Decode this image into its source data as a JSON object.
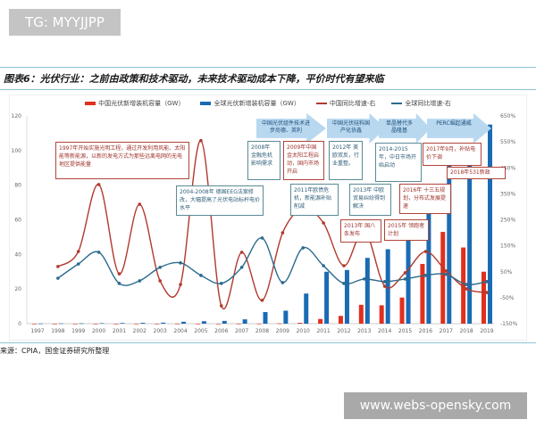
{
  "watermark_top": "TG: MYYJJPP",
  "watermark_bottom": "www.webs-opensky.com",
  "title": "图表6：光伏行业：之前由政策和技术驱动，未来技术驱动成本下降，平价时代有望来临",
  "source": "来源：CPIA，国金证券研究所整理",
  "colors": {
    "china": "#e0301e",
    "global": "#1a6bb3",
    "china_line": "#b03a2e",
    "global_line": "#2a6a8e"
  },
  "arrows": [
    "中国光伏组件技术进步尚德、英利",
    "中国光伏硅料国产化协鑫",
    "单晶替代多晶隆基",
    "PERC崛起通威"
  ],
  "annotations": [
    "1997年开始实施光明工程，通过开发利用风能、太阳能等新能源，以新的发电方式为那些远离电网的无电地区提供能量",
    "2004-2008年 德国EEG法案修改，大幅提高了光伏电站标杆电价水平",
    "2008年 金融危机影响需求",
    "2009年中国金太阳工程启动，国内市场开启",
    "2012年 美欧双反，行业重整。",
    "2011年欧债危机，新能源补贴削减",
    "2013年 中欧贸易纠纷得到解决",
    "2013年 国八条发布",
    "2014-2015年，中日市场开始启动",
    "2015年 领跑者计划",
    "2016年 十三五规划，分布式发展提速",
    "2017年9月，补贴电价下调",
    "2018年531新政"
  ],
  "chart_data": {
    "type": "bar+line",
    "categories": [
      "1997",
      "1998",
      "1999",
      "2000",
      "2001",
      "2002",
      "2003",
      "2004",
      "2005",
      "2006",
      "2007",
      "2008",
      "2009",
      "2010",
      "2011",
      "2012",
      "2013",
      "2014",
      "2015",
      "2016",
      "2017",
      "2018",
      "2019"
    ],
    "series": [
      {
        "name": "中国光伏新增装机容量（GW）",
        "type": "bar",
        "axis": "left",
        "values": [
          0,
          0,
          0,
          0,
          0,
          0,
          0,
          0,
          0,
          0,
          0.02,
          0.04,
          0.16,
          0.5,
          2.7,
          4.5,
          10.9,
          10.6,
          15.1,
          34.5,
          53,
          44,
          30
        ]
      },
      {
        "name": "全球光伏新增装机容量（GW）",
        "type": "bar",
        "axis": "left",
        "values": [
          0.1,
          0.15,
          0.2,
          0.3,
          0.4,
          0.5,
          0.6,
          1.1,
          1.4,
          1.6,
          2.5,
          6.7,
          7.5,
          17.4,
          30,
          31,
          38,
          43,
          52,
          75,
          100,
          103,
          115
        ]
      },
      {
        "name": "中国同比增速-右",
        "type": "line",
        "axis": "right",
        "values": [
          null,
          70,
          128,
          386,
          42,
          310,
          15,
          1,
          555,
          -81,
          125,
          -60,
          200,
          293,
          238,
          73,
          210,
          -6,
          46,
          128,
          53,
          -16,
          -30
        ]
      },
      {
        "name": "全球同比增速-右",
        "type": "line",
        "axis": "right",
        "values": [
          null,
          25,
          80,
          125,
          5,
          15,
          67,
          84,
          36,
          5,
          67,
          180,
          8,
          142,
          73,
          5,
          22,
          12,
          22,
          36,
          40,
          1,
          12
        ]
      }
    ],
    "left_axis": {
      "range": [
        0,
        120
      ],
      "ticks": [
        "0",
        "20",
        "40",
        "60",
        "80",
        "100",
        "120"
      ]
    },
    "right_axis": {
      "range": [
        -150,
        650
      ],
      "ticks": [
        "-150%",
        "-50%",
        "50%",
        "150%",
        "250%",
        "350%",
        "450%",
        "550%",
        "650%"
      ]
    },
    "legend_position": "top",
    "grid": false
  }
}
